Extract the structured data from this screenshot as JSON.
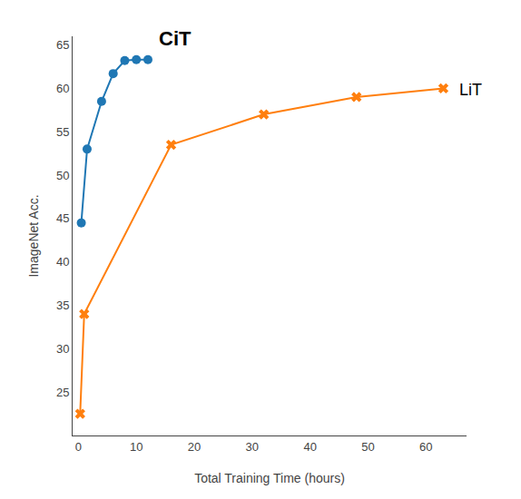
{
  "chart_data": {
    "type": "line",
    "x_label": "Total Training Time (hours)",
    "y_label": "ImageNet Acc.",
    "series": [
      {
        "name": "CiT",
        "color": "#1f77b4",
        "marker": "circle",
        "x": [
          0.5,
          1.5,
          4,
          6,
          8,
          10,
          12
        ],
        "values": [
          44.5,
          53.0,
          58.5,
          61.7,
          63.2,
          63.3,
          63.3
        ]
      },
      {
        "name": "LiT",
        "color": "#ff7f0e",
        "marker": "x",
        "x": [
          0.3,
          1.0,
          16,
          32,
          48,
          63
        ],
        "values": [
          22.5,
          34.0,
          53.5,
          57.0,
          59.0,
          60.0
        ]
      }
    ],
    "annotations": [
      {
        "text": "CiT",
        "x": 13.5,
        "y": 64.2
      },
      {
        "text": "LiT",
        "x": 65.5,
        "y": 59.8
      }
    ],
    "xlim": [
      -1,
      67
    ],
    "ylim": [
      20,
      66
    ],
    "xticks": [
      0,
      10,
      20,
      30,
      40,
      50,
      60
    ],
    "yticks": [
      25,
      30,
      35,
      40,
      45,
      50,
      55,
      60,
      65
    ],
    "grid": false
  }
}
